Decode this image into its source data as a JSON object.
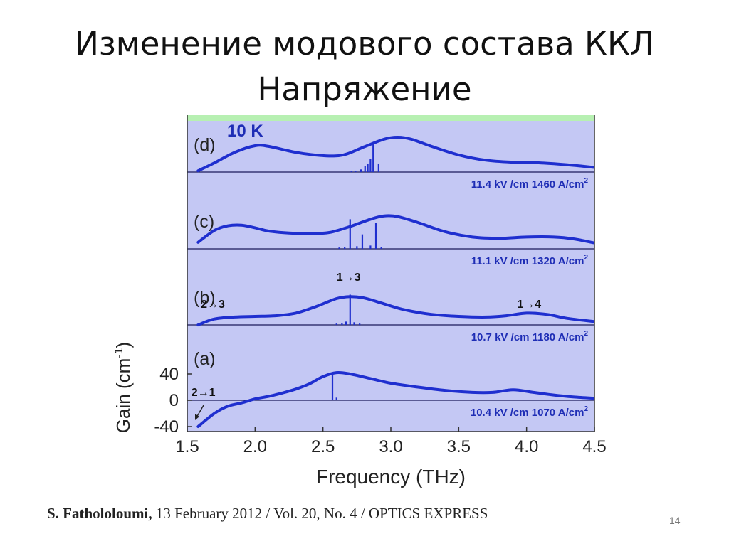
{
  "slide": {
    "title_line1": "Изменение модового состава ККЛ",
    "title_line2": "Напряжение",
    "citation_author": "S. Fathololoumi,",
    "citation_rest": " 13 February 2012 / Vol. 20,  No. 4 / OPTICS EXPRESS",
    "slide_number": "14"
  },
  "colors": {
    "panel_background": "#c4c8f4",
    "curve": "#1f2fcf",
    "baseline": "#1a1a5a",
    "label_blue": "#1e2db5",
    "top_strip": "#b7f0b2"
  },
  "chart_data": {
    "type": "line",
    "xlabel": "Frequency (THz)",
    "ylabel": "Gain (cm-1)",
    "xlim": [
      1.5,
      4.5
    ],
    "x_ticks": [
      "1.5",
      "2.0",
      "2.5",
      "3.0",
      "3.5",
      "4.0",
      "4.5"
    ],
    "y_ticks": [
      "40",
      "0",
      "-40"
    ],
    "temperature_label": "10 K",
    "grid": false,
    "panels": [
      {
        "label": "(d)",
        "condition": "11.4 kV /cm 1460 A/cm",
        "condition_sup": "2",
        "transitions": [],
        "gain_curve": {
          "x": [
            1.58,
            1.7,
            1.85,
            2.0,
            2.1,
            2.3,
            2.5,
            2.65,
            2.8,
            2.95,
            3.05,
            3.15,
            3.3,
            3.5,
            3.7,
            3.9,
            4.1,
            4.3,
            4.5
          ],
          "y": [
            2,
            14,
            30,
            40,
            39,
            30,
            25,
            26,
            38,
            50,
            53,
            50,
            39,
            26,
            18,
            15,
            14,
            11,
            7
          ]
        },
        "lasing_lines": {
          "x": [
            2.71,
            2.74,
            2.78,
            2.81,
            2.83,
            2.85,
            2.87,
            2.91
          ],
          "y": [
            2,
            2,
            4,
            9,
            13,
            20,
            42,
            13
          ]
        }
      },
      {
        "label": "(c)",
        "condition": "11.1 kV /cm 1320 A/cm",
        "condition_sup": "2",
        "transitions": [],
        "gain_curve": {
          "x": [
            1.58,
            1.7,
            1.8,
            1.9,
            2.0,
            2.1,
            2.25,
            2.4,
            2.55,
            2.7,
            2.85,
            2.95,
            3.05,
            3.2,
            3.4,
            3.6,
            3.8,
            4.0,
            4.2,
            4.35,
            4.5
          ],
          "y": [
            10,
            28,
            35,
            36,
            32,
            27,
            24,
            23,
            25,
            34,
            45,
            50,
            49,
            40,
            26,
            18,
            16,
            18,
            18,
            15,
            9
          ]
        },
        "lasing_lines": {
          "x": [
            2.62,
            2.66,
            2.7,
            2.75,
            2.79,
            2.85,
            2.89,
            2.93
          ],
          "y": [
            2,
            3,
            45,
            4,
            22,
            5,
            40,
            3
          ]
        }
      },
      {
        "label": "(b)",
        "condition": "10.7 kV /cm 1180 A/cm",
        "condition_sup": "2",
        "transitions": [
          {
            "text": "2→3",
            "x": 1.6
          },
          {
            "text": "1→3",
            "x": 2.6
          },
          {
            "text": "1→4",
            "x": 3.93
          }
        ],
        "gain_curve": {
          "x": [
            1.58,
            1.7,
            1.85,
            2.0,
            2.15,
            2.3,
            2.45,
            2.6,
            2.7,
            2.8,
            2.95,
            3.1,
            3.3,
            3.5,
            3.7,
            3.85,
            4.0,
            4.15,
            4.3,
            4.5
          ],
          "y": [
            0,
            9,
            12,
            13,
            14,
            18,
            28,
            40,
            43,
            41,
            32,
            23,
            16,
            13,
            12,
            14,
            18,
            16,
            10,
            5
          ]
        },
        "lasing_lines": {
          "x": [
            2.6,
            2.64,
            2.67,
            2.7,
            2.73,
            2.77
          ],
          "y": [
            2,
            3,
            5,
            46,
            4,
            2
          ]
        }
      },
      {
        "label": "(a)",
        "condition": "10.4 kV /cm 1070 A/cm",
        "condition_sup": "2",
        "transitions": [
          {
            "text": "2→1",
            "x": 1.53
          }
        ],
        "gain_curve": {
          "x": [
            1.58,
            1.7,
            1.8,
            1.9,
            2.0,
            2.1,
            2.2,
            2.3,
            2.4,
            2.5,
            2.6,
            2.7,
            2.85,
            3.0,
            3.2,
            3.4,
            3.6,
            3.75,
            3.9,
            4.05,
            4.2,
            4.35,
            4.5
          ],
          "y": [
            -40,
            -20,
            -9,
            -4,
            2,
            6,
            11,
            17,
            25,
            36,
            42,
            40,
            33,
            26,
            20,
            15,
            12,
            12,
            16,
            12,
            8,
            5,
            3
          ]
        },
        "lasing_lines": {
          "x": [
            2.57,
            2.6
          ],
          "y": [
            42,
            4
          ]
        }
      }
    ]
  }
}
